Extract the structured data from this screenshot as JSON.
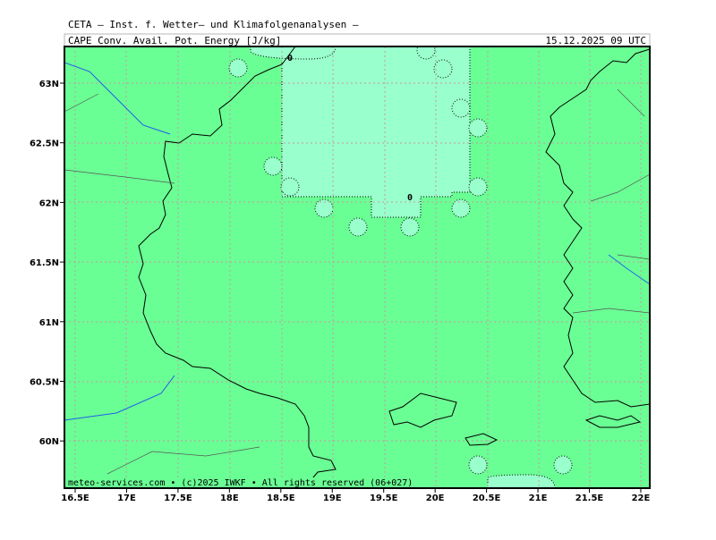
{
  "header": {
    "title": "CETA — Inst. f. Wetter— und Klimafolgenanalysen —",
    "field": "CAPE_Conv._Avail._Pot._Energy_[J/kg]",
    "valid": "15.12.2025 09 UTC"
  },
  "map": {
    "lon_labels": [
      "16.5E",
      "17E",
      "17.5E",
      "18E",
      "18.5E",
      "19E",
      "19.5E",
      "20E",
      "20.5E",
      "21E",
      "21.5E",
      "22E"
    ],
    "lat_labels": [
      "63N",
      "62.5N",
      "62N",
      "61.5N",
      "61N",
      "60.5N",
      "60N"
    ],
    "contour_labels": [
      "0",
      "0"
    ],
    "credit": "meteo-services.com • (c)2025 IWKF • All rights reserved (06+027)"
  }
}
